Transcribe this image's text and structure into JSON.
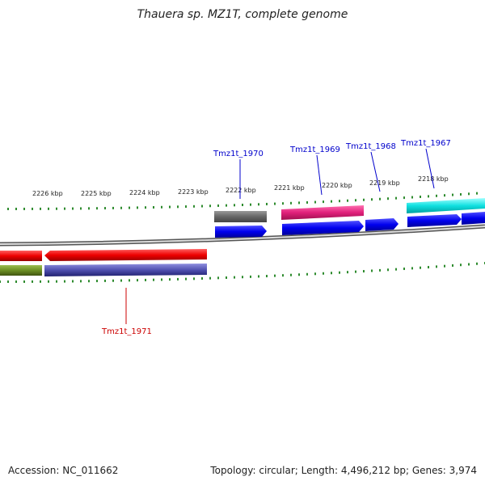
{
  "title": "Thauera sp. MZ1T, complete genome",
  "footer": {
    "accession": "Accession: NC_011662",
    "stats": "Topology: circular; Length: 4,496,212 bp; Genes: 3,974"
  },
  "scale": {
    "tick_labels": [
      "2226 kbp",
      "2225 kbp",
      "2224 kbp",
      "2223 kbp",
      "2222 kbp",
      "2221 kbp",
      "2220 kbp",
      "2219 kbp",
      "2218 kbp"
    ]
  },
  "genes": [
    {
      "label": "Tmz1t_1970",
      "color": "#0000cc"
    },
    {
      "label": "Tmz1t_1969",
      "color": "#0000cc"
    },
    {
      "label": "Tmz1t_1968",
      "color": "#0000cc"
    },
    {
      "label": "Tmz1t_1967",
      "color": "#0000cc"
    },
    {
      "label": "Tmz1t_1971",
      "color": "#cc0000"
    }
  ],
  "colors": {
    "backbone": "#777777",
    "tick": "#2e8b2e",
    "gene_forward": "#1010ee",
    "gene_reverse": "#ee1010",
    "cog_gray": "#666666",
    "cog_pink": "#e0207a",
    "cog_cyan": "#10e0e0",
    "cog_olive": "#6b8e23",
    "cog_slate": "#5050b0"
  }
}
